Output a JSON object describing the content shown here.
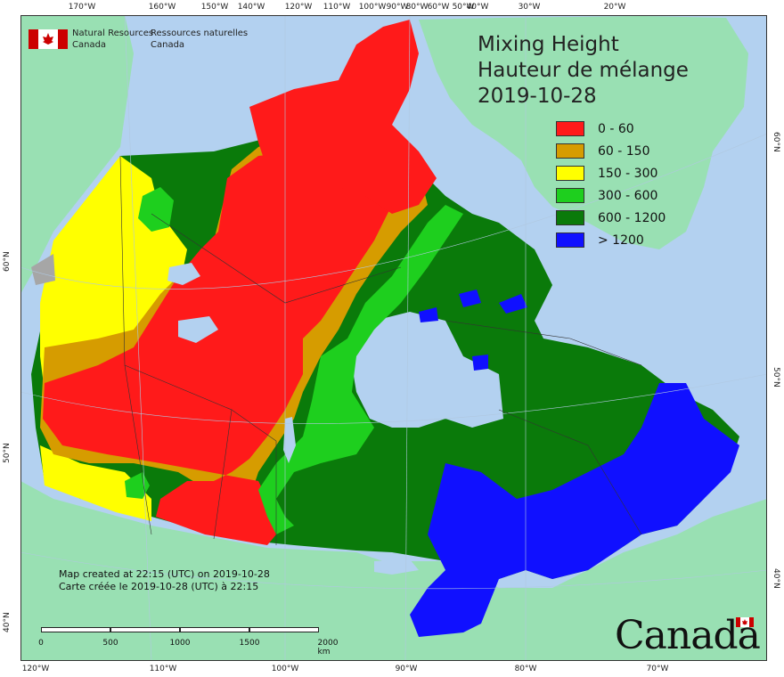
{
  "title": {
    "line1": "Mixing Height",
    "line2": "Hauteur de mélange",
    "date": "2019-10-28"
  },
  "legend": [
    {
      "label": "0 - 60",
      "color": "#ff1a1a"
    },
    {
      "label": "60 - 150",
      "color": "#d69c00"
    },
    {
      "label": "150 - 300",
      "color": "#ffff00"
    },
    {
      "label": "300 - 600",
      "color": "#1ecf1e"
    },
    {
      "label": "600 - 1200",
      "color": "#0a7a0a"
    },
    {
      "label": "> 1200",
      "color": "#1010ff"
    }
  ],
  "agency": {
    "en_line1": "Natural Resources",
    "en_line2": "Canada",
    "fr_line1": "Ressources naturelles",
    "fr_line2": "Canada"
  },
  "credit": {
    "en": "Map created at 22:15 (UTC) on 2019-10-28",
    "fr": "Carte créée le 2019-10-28 (UTC) à 22:15"
  },
  "scalebar": {
    "labels": [
      "0",
      "500",
      "1000",
      "1500",
      "2000 km"
    ]
  },
  "wordmark": "Canada",
  "graticule": {
    "top": [
      "170°W",
      "160°W",
      "150°W",
      "140°W",
      "120°W",
      "110°W",
      "100°W",
      "90°W",
      "80°W",
      "60°W",
      "50°W",
      "40°W",
      "30°W",
      "20°W"
    ],
    "bottom": [
      "120°W",
      "110°W",
      "100°W",
      "90°W",
      "80°W",
      "70°W"
    ],
    "left": [
      "60°N",
      "50°N",
      "40°N"
    ],
    "right": [
      "60°N",
      "50°N",
      "40°N"
    ]
  },
  "colors": {
    "ocean": "#b3d1f0",
    "land_other": "#99e0b3",
    "gray_zone": "#a6a6a6"
  }
}
